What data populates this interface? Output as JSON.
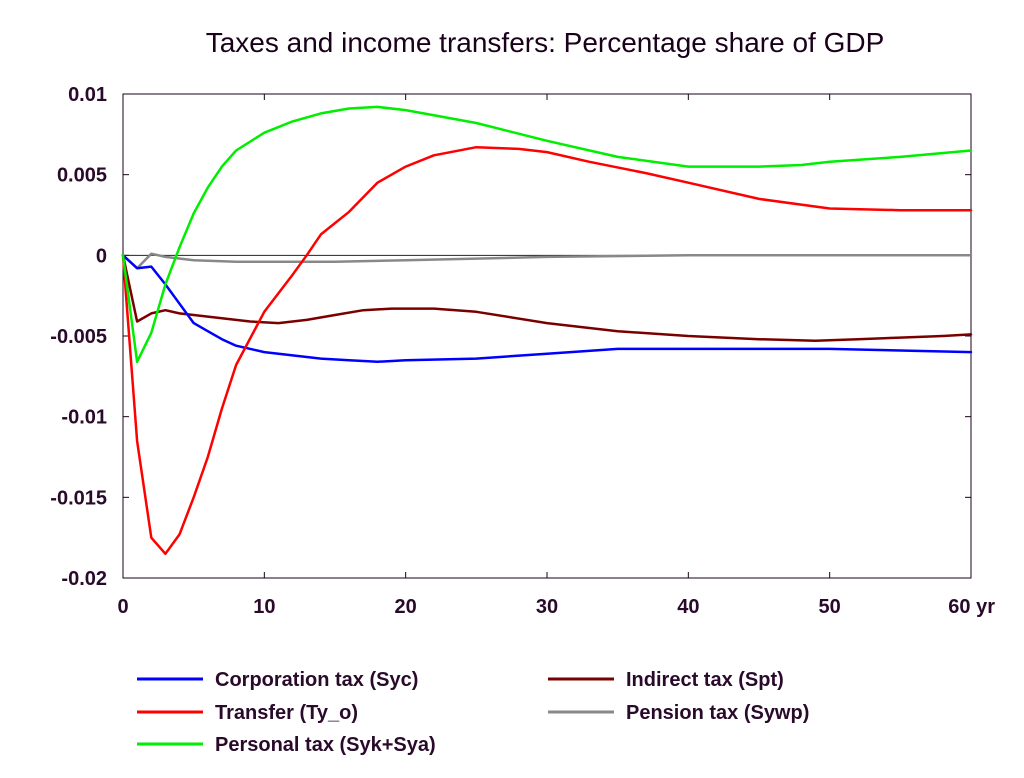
{
  "chart_data": {
    "type": "line",
    "title": "Taxes and income transfers: Percentage share of GDP",
    "x_unit_label": "yr",
    "xlim": [
      0,
      60
    ],
    "ylim": [
      -0.02,
      0.01
    ],
    "x_ticks": [
      0,
      10,
      20,
      30,
      40,
      50,
      60
    ],
    "x_tick_labels": [
      "0",
      "10",
      "20",
      "30",
      "40",
      "50",
      "60 yr"
    ],
    "y_ticks": [
      0.01,
      0.005,
      0,
      -0.005,
      -0.01,
      -0.015,
      -0.02
    ],
    "y_tick_labels": [
      "0.01",
      "0.005",
      "0",
      "-0.005",
      "-0.01",
      "-0.015",
      "-0.02"
    ],
    "zero_line": true,
    "grid": false,
    "legend_position": "bottom",
    "series": [
      {
        "name": "Corporation tax (Syc)",
        "color": "#0000ff",
        "x": [
          0,
          1,
          2,
          3,
          4,
          5,
          6,
          7,
          8,
          10,
          12,
          14,
          16,
          18,
          20,
          25,
          30,
          35,
          40,
          45,
          50,
          55,
          60
        ],
        "y": [
          0,
          -0.0008,
          -0.0007,
          -0.0018,
          -0.003,
          -0.0042,
          -0.0047,
          -0.0052,
          -0.0056,
          -0.006,
          -0.0062,
          -0.0064,
          -0.0065,
          -0.0066,
          -0.0065,
          -0.0064,
          -0.0061,
          -0.0058,
          -0.0058,
          -0.0058,
          -0.0058,
          -0.0059,
          -0.006
        ]
      },
      {
        "name": "Transfer (Ty_o)",
        "color": "#ff0000",
        "x": [
          0,
          1,
          2,
          3,
          4,
          5,
          6,
          7,
          8,
          10,
          12,
          13,
          14,
          16,
          18,
          20,
          22,
          25,
          28,
          30,
          33,
          37,
          40,
          45,
          50,
          55,
          60
        ],
        "y": [
          0,
          -0.0115,
          -0.0175,
          -0.0185,
          -0.0173,
          -0.015,
          -0.0125,
          -0.0095,
          -0.0068,
          -0.0035,
          -0.0012,
          0,
          0.0013,
          0.0027,
          0.0045,
          0.0055,
          0.0062,
          0.0067,
          0.0066,
          0.0064,
          0.0058,
          0.0051,
          0.0045,
          0.0035,
          0.0029,
          0.0028,
          0.0028
        ]
      },
      {
        "name": "Personal tax (Syk+Sya)",
        "color": "#00ee00",
        "x": [
          0,
          1,
          2,
          3,
          4,
          5,
          6,
          7,
          8,
          10,
          12,
          14,
          16,
          18,
          20,
          25,
          30,
          35,
          40,
          45,
          48,
          50,
          55,
          60
        ],
        "y": [
          0,
          -0.0066,
          -0.0048,
          -0.0018,
          0.0005,
          0.0026,
          0.0042,
          0.0055,
          0.0065,
          0.0076,
          0.0083,
          0.0088,
          0.0091,
          0.0092,
          0.009,
          0.0082,
          0.0071,
          0.0061,
          0.0055,
          0.0055,
          0.0056,
          0.0058,
          0.0061,
          0.0065
        ]
      },
      {
        "name": "Indirect tax (Spt)",
        "color": "#7a0000",
        "x": [
          0,
          1,
          2,
          3,
          4,
          5,
          7,
          9,
          11,
          13,
          15,
          17,
          19,
          22,
          25,
          30,
          35,
          40,
          45,
          49,
          52,
          55,
          58,
          60
        ],
        "y": [
          0,
          -0.0041,
          -0.0036,
          -0.0034,
          -0.0036,
          -0.0037,
          -0.0039,
          -0.0041,
          -0.0042,
          -0.004,
          -0.0037,
          -0.0034,
          -0.0033,
          -0.0033,
          -0.0035,
          -0.0042,
          -0.0047,
          -0.005,
          -0.0052,
          -0.0053,
          -0.0052,
          -0.0051,
          -0.005,
          -0.0049
        ]
      },
      {
        "name": "Pension tax (Sywp)",
        "color": "#888888",
        "x": [
          0,
          1,
          2,
          3,
          5,
          8,
          10,
          15,
          20,
          25,
          30,
          40,
          45,
          50,
          60
        ],
        "y": [
          0,
          -0.0008,
          0.0001,
          -0.0001,
          -0.0003,
          -0.0004,
          -0.0004,
          -0.0004,
          -0.0003,
          -0.0002,
          -0.0001,
          0,
          0,
          0,
          0
        ]
      }
    ]
  }
}
